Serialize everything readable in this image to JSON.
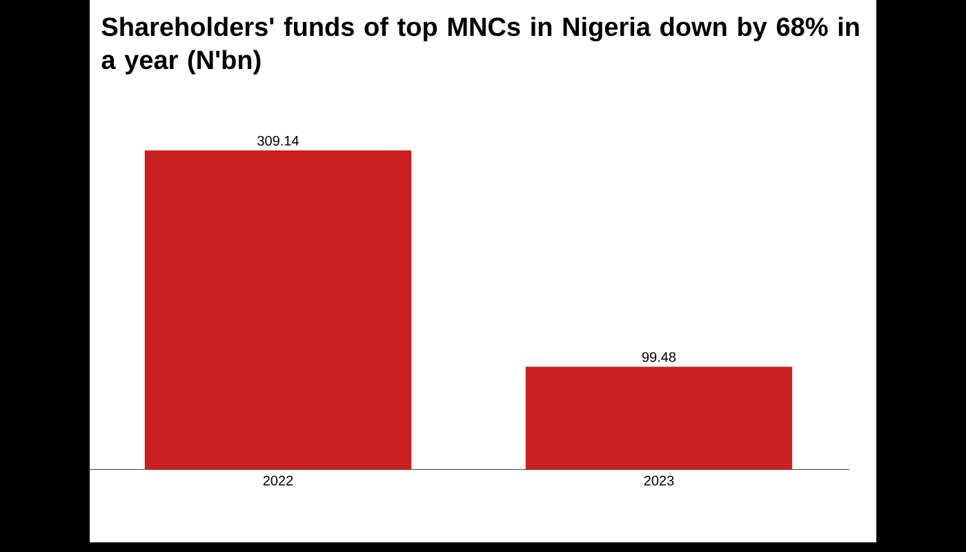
{
  "chart_data": {
    "type": "bar",
    "title": "Shareholders' funds of top MNCs in Nigeria down by 68% in a year (N'bn)",
    "categories": [
      "2022",
      "2023"
    ],
    "values": [
      309.14,
      99.48
    ],
    "color": "#cc1f1f",
    "data_labels": true
  }
}
